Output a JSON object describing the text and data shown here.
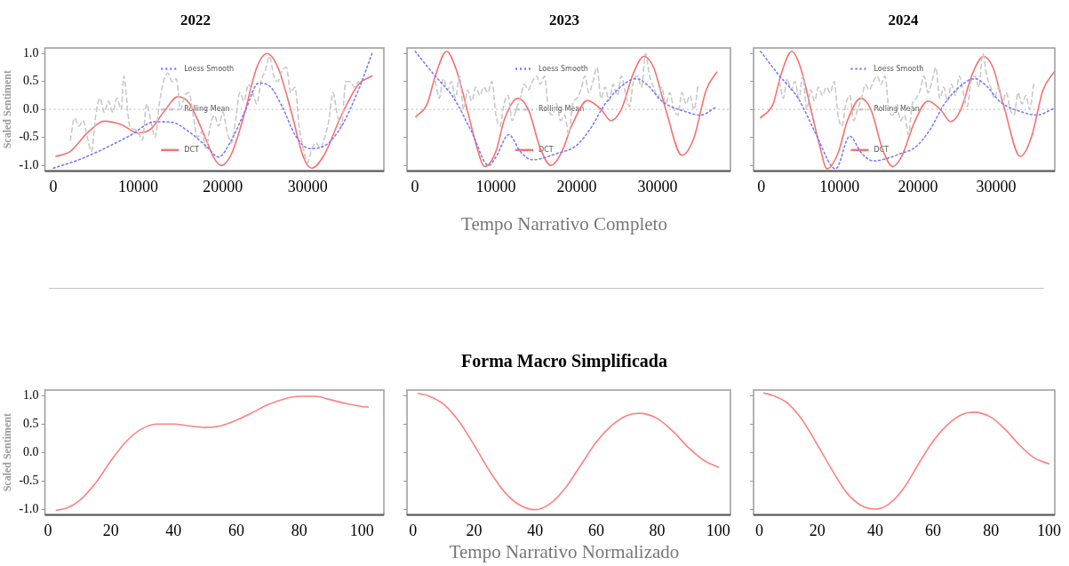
{
  "chart_data": [
    {
      "type": "line",
      "title": "2022",
      "ylabel": "Scaled Sentiment",
      "xlim": [
        -1000,
        39000
      ],
      "ylim": [
        -1.1,
        1.1
      ],
      "xticks": [
        0,
        10000,
        20000,
        30000
      ],
      "yticks": [
        {
          "value": -1,
          "label": "-1.0"
        },
        {
          "value": -0.5,
          "label": "-0.5"
        },
        {
          "value": 0,
          "label": "0.0"
        },
        {
          "value": 0.5,
          "label": "0.5"
        },
        {
          "value": 1,
          "label": "1.0"
        }
      ],
      "legend": "center",
      "ref_lines": [
        {
          "axis": "y",
          "value": 0,
          "color": "#c8c8c8",
          "line_style": "dotted"
        }
      ],
      "series": [
        {
          "name": "Loess Smooth",
          "color": "#7b7bff",
          "line_style": "dotted",
          "x": [
            0,
            3000,
            6000,
            9000,
            12000,
            14000,
            16000,
            18000,
            19500,
            21000,
            22700,
            24200,
            25500,
            27000,
            28500,
            30200,
            32000,
            34000,
            36000,
            37600
          ],
          "values": [
            -1.05,
            -0.9,
            -0.7,
            -0.47,
            -0.22,
            -0.23,
            -0.4,
            -0.65,
            -0.85,
            -0.55,
            0.0,
            0.47,
            0.42,
            0.05,
            -0.45,
            -0.7,
            -0.65,
            -0.3,
            0.35,
            1.0
          ]
        },
        {
          "name": "Rolling Mean",
          "color": "#c8c8c8",
          "line_style": "dashed",
          "x": [
            2000,
            2500,
            3000,
            3500,
            4000,
            4500,
            5000,
            5500,
            6000,
            6500,
            7000,
            7500,
            8000,
            8300,
            9000,
            9500,
            10000,
            10500,
            11000,
            11500,
            12000,
            12500,
            13000,
            13500,
            14000,
            14500,
            15000,
            15500,
            16000,
            16500,
            17000,
            17500,
            18000,
            18500,
            19000,
            19500,
            20000,
            20500,
            21000,
            21500,
            22000,
            22500,
            23000,
            23500,
            24000,
            24500,
            25000,
            25500,
            26000,
            26500,
            27000,
            27500,
            28000,
            28500,
            29000,
            29500,
            30000,
            30500,
            31000,
            31500,
            32000,
            32500,
            33000,
            33500,
            34000,
            34500,
            35000,
            35500,
            36000
          ],
          "values": [
            -0.55,
            -0.15,
            -0.3,
            -0.2,
            -0.5,
            -0.75,
            -0.1,
            0.2,
            -0.05,
            0.15,
            -0.05,
            0.2,
            0.0,
            0.6,
            -0.3,
            -0.35,
            -0.4,
            -0.55,
            0.1,
            -0.2,
            -0.5,
            0.1,
            0.5,
            0.65,
            0.5,
            0.55,
            0.0,
            0.25,
            0.3,
            -0.1,
            -0.5,
            -0.4,
            -0.7,
            -0.3,
            -0.1,
            -0.3,
            -0.05,
            -0.4,
            -0.6,
            -0.2,
            0.3,
            0.15,
            0.45,
            0.3,
            0.1,
            0.5,
            0.7,
            0.95,
            0.6,
            0.5,
            0.7,
            0.75,
            0.3,
            0.4,
            -0.3,
            -0.7,
            -0.95,
            -0.7,
            -0.6,
            -0.7,
            -0.5,
            -0.2,
            0.3,
            -0.1,
            -0.3,
            0.5,
            0.5,
            0.4,
            0.5
          ]
        },
        {
          "name": "DCT",
          "color": "#f77070",
          "line_style": "solid",
          "x": [
            300,
            2000,
            4000,
            6000,
            8000,
            10000,
            11500,
            13000,
            14700,
            16000,
            17500,
            19000,
            19800,
            21000,
            22500,
            24000,
            25200,
            26500,
            28000,
            29500,
            30500,
            32000,
            34000,
            36000,
            37600
          ],
          "values": [
            -0.84,
            -0.75,
            -0.42,
            -0.21,
            -0.27,
            -0.42,
            -0.35,
            -0.05,
            0.23,
            0.12,
            -0.35,
            -0.88,
            -1.0,
            -0.8,
            -0.1,
            0.75,
            1.0,
            0.75,
            0.0,
            -0.85,
            -1.05,
            -0.8,
            -0.1,
            0.45,
            0.6
          ]
        }
      ]
    },
    {
      "type": "line",
      "title": "2023",
      "xlabel": "Tempo Narrativo Completo",
      "tick_labels": "x",
      "xlim": [
        -1000,
        39000
      ],
      "ylim": [
        -1.1,
        1.1
      ],
      "xticks": [
        0,
        10000,
        20000,
        30000
      ],
      "yticks": [
        {
          "value": -1,
          "label": null
        },
        {
          "value": -0.5,
          "label": null
        },
        {
          "value": 0,
          "label": null
        },
        {
          "value": 0.5,
          "label": null
        },
        {
          "value": 1,
          "label": null
        }
      ],
      "legend": "center",
      "ref_lines": [
        {
          "axis": "y",
          "value": 0,
          "color": "#c8c8c8",
          "line_style": "dotted"
        }
      ],
      "series": [
        {
          "name": "Loess Smooth",
          "color": "#7b7bff",
          "line_style": "dotted",
          "x": [
            0,
            2300,
            4800,
            7000,
            9100,
            10000,
            11600,
            13000,
            14500,
            17700,
            19900,
            21700,
            23500,
            26300,
            27400,
            28800,
            30600,
            33500,
            35300,
            37300
          ],
          "values": [
            1.04,
            0.63,
            0.2,
            -0.4,
            -1.0,
            -0.85,
            -0.45,
            -0.75,
            -0.9,
            -0.78,
            -0.65,
            -0.34,
            0.1,
            0.5,
            0.55,
            0.43,
            0.14,
            -0.04,
            -0.1,
            0.05
          ]
        },
        {
          "name": "Rolling Mean",
          "color": "#c8c8c8",
          "line_style": "dashed",
          "x": [
            2500,
            3000,
            3500,
            4000,
            4500,
            5000,
            5500,
            6000,
            6500,
            7000,
            7500,
            8000,
            8500,
            9000,
            9500,
            10000,
            10500,
            11000,
            11500,
            12000,
            12500,
            13000,
            13500,
            14000,
            14500,
            15000,
            15500,
            16000,
            16500,
            17000,
            17500,
            18000,
            18500,
            19000,
            19500,
            20000,
            20500,
            21000,
            21500,
            22000,
            22500,
            23000,
            23500,
            24000,
            24500,
            25000,
            25500,
            26000,
            26500,
            27000,
            27500,
            28000,
            28500,
            29000,
            29500,
            30000,
            30500,
            31000,
            31500,
            32000,
            32500,
            33000,
            33500,
            34000,
            34500,
            35000
          ],
          "values": [
            0.5,
            0.2,
            0.55,
            0.35,
            0.5,
            0.2,
            0.6,
            0.0,
            0.35,
            0.15,
            0.4,
            0.25,
            0.4,
            0.3,
            0.5,
            -0.1,
            -0.3,
            0.1,
            0.25,
            -0.2,
            0.0,
            0.2,
            0.45,
            0.35,
            0.5,
            0.6,
            0.45,
            0.6,
            0.0,
            -0.1,
            0.1,
            -0.2,
            -0.1,
            -0.45,
            0.1,
            0.2,
            0.35,
            0.6,
            0.3,
            0.5,
            0.75,
            0.2,
            0.4,
            0.15,
            0.45,
            0.25,
            0.6,
            0.3,
            0.05,
            0.5,
            0.6,
            0.4,
            1.0,
            0.6,
            0.4,
            0.2,
            0.4,
            0.1,
            0.3,
            0.0,
            -0.1,
            0.3,
            0.1,
            0.25,
            0.0,
            0.45
          ]
        },
        {
          "name": "DCT",
          "color": "#f77070",
          "line_style": "solid",
          "x": [
            100,
            1500,
            2500,
            3900,
            5000,
            6600,
            7500,
            8600,
            10000,
            11000,
            12700,
            14000,
            15500,
            16800,
            18000,
            19500,
            21300,
            23000,
            24200,
            25500,
            27000,
            28300,
            29500,
            31000,
            33000,
            34500,
            36000,
            37300
          ],
          "values": [
            -0.13,
            0.1,
            0.6,
            1.04,
            0.75,
            -0.09,
            -0.6,
            -1.02,
            -0.75,
            -0.2,
            0.2,
            0.0,
            -0.7,
            -1.0,
            -0.8,
            -0.25,
            0.16,
            0.0,
            -0.2,
            0.0,
            0.65,
            0.95,
            0.75,
            0.0,
            -0.82,
            -0.5,
            0.35,
            0.67
          ]
        }
      ]
    },
    {
      "type": "line",
      "title": "2024",
      "tick_labels": "x",
      "xlim": [
        -1000,
        37500
      ],
      "ylim": [
        -1.1,
        1.1
      ],
      "xticks": [
        0,
        10000,
        20000,
        30000
      ],
      "yticks": [
        {
          "value": -1,
          "label": null
        },
        {
          "value": -0.5,
          "label": null
        },
        {
          "value": 0,
          "label": null
        },
        {
          "value": 0.5,
          "label": null
        },
        {
          "value": 1,
          "label": null
        }
      ],
      "legend": "center",
      "ref_lines": [
        {
          "axis": "y",
          "value": 0,
          "color": "#c8c8c8",
          "line_style": "dotted"
        }
      ],
      "series": [
        {
          "name": "Loess Smooth",
          "color": "#7b7bff",
          "line_style": "dotted",
          "x": [
            -100,
            2200,
            4700,
            6900,
            9000,
            9500,
            11300,
            12800,
            14300,
            17600,
            19800,
            21600,
            23400,
            26200,
            27300,
            28700,
            30500,
            33400,
            35200,
            37400
          ],
          "values": [
            1.04,
            0.62,
            0.2,
            -0.42,
            -1.02,
            -1.06,
            -0.48,
            -0.78,
            -0.92,
            -0.8,
            -0.66,
            -0.35,
            0.1,
            0.5,
            0.55,
            0.43,
            0.14,
            -0.05,
            -0.1,
            0.02
          ]
        },
        {
          "name": "Rolling Mean",
          "color": "#c8c8c8",
          "line_style": "dashed",
          "x": [
            2300,
            2800,
            3300,
            3800,
            4300,
            4800,
            5300,
            5800,
            6300,
            6800,
            7300,
            7800,
            8300,
            8800,
            9300,
            9800,
            10300,
            10800,
            11300,
            11800,
            12300,
            12800,
            13300,
            13800,
            14300,
            14800,
            15300,
            15800,
            16300,
            16800,
            17300,
            17800,
            18300,
            18800,
            19300,
            19800,
            20300,
            20800,
            21300,
            21800,
            22300,
            22800,
            23300,
            23800,
            24300,
            24800,
            25300,
            25800,
            26300,
            26800,
            27300,
            27800,
            28300,
            28800,
            29300,
            29800,
            30300,
            30800,
            31300,
            31800,
            32300,
            32800,
            33300,
            33800,
            34300,
            34800
          ],
          "values": [
            0.5,
            0.2,
            0.55,
            0.35,
            0.5,
            0.2,
            0.6,
            0.0,
            0.35,
            0.15,
            0.4,
            0.25,
            0.4,
            0.3,
            0.5,
            -0.1,
            -0.3,
            0.1,
            0.25,
            -0.2,
            0.0,
            0.2,
            0.45,
            0.35,
            0.5,
            0.6,
            0.45,
            0.6,
            0.0,
            -0.1,
            0.1,
            -0.2,
            -0.1,
            -0.45,
            0.1,
            0.2,
            0.35,
            0.6,
            0.3,
            0.5,
            0.75,
            0.2,
            0.4,
            0.15,
            0.45,
            0.25,
            0.6,
            0.3,
            0.05,
            0.5,
            0.6,
            0.4,
            1.0,
            0.6,
            0.4,
            0.2,
            0.4,
            0.1,
            0.3,
            0.0,
            -0.1,
            0.3,
            0.1,
            0.25,
            0.0,
            0.45
          ]
        },
        {
          "name": "DCT",
          "color": "#f77070",
          "line_style": "solid",
          "x": [
            -100,
            1500,
            2500,
            3900,
            5000,
            6500,
            7400,
            8400,
            9800,
            11000,
            12700,
            14000,
            15500,
            16800,
            18000,
            19500,
            21300,
            23000,
            24200,
            25500,
            27000,
            28400,
            29600,
            31000,
            33100,
            34500,
            36000,
            37400
          ],
          "values": [
            -0.15,
            0.1,
            0.62,
            1.04,
            0.75,
            -0.1,
            -0.62,
            -1.06,
            -0.78,
            -0.2,
            0.2,
            0.0,
            -0.72,
            -1.02,
            -0.82,
            -0.25,
            0.15,
            -0.02,
            -0.22,
            0.0,
            0.65,
            0.95,
            0.75,
            0.05,
            -0.84,
            -0.5,
            0.35,
            0.67
          ]
        }
      ]
    },
    {
      "type": "line",
      "ylabel": "Scaled Sentiment",
      "xlim": [
        -1,
        107
      ],
      "ylim": [
        -1.1,
        1.1
      ],
      "xticks": [
        0,
        20,
        40,
        60,
        80,
        100
      ],
      "yticks": [
        {
          "value": -1,
          "label": "-1.0"
        },
        {
          "value": -0.5,
          "label": "-0.5"
        },
        {
          "value": 0,
          "label": "0.0"
        },
        {
          "value": 0.5,
          "label": "0.5"
        },
        {
          "value": 1,
          "label": "1.0"
        }
      ],
      "series": [
        {
          "color": "#ff8080",
          "x": [
            2.6,
            6,
            10,
            15,
            20,
            25,
            30,
            35,
            40,
            45,
            50,
            55,
            60,
            65,
            70,
            75,
            80,
            85,
            90,
            95,
            100,
            102
          ],
          "values": [
            -1.02,
            -0.98,
            -0.85,
            -0.55,
            -0.15,
            0.2,
            0.42,
            0.5,
            0.5,
            0.47,
            0.44,
            0.47,
            0.57,
            0.7,
            0.84,
            0.94,
            0.99,
            0.99,
            0.93,
            0.86,
            0.81,
            0.8
          ]
        }
      ]
    },
    {
      "type": "line",
      "title": "Forma Macro Simplificada",
      "xlabel": "Tempo Narrativo Normalizado",
      "tick_labels": "x",
      "xlim": [
        -2,
        104
      ],
      "ylim": [
        -1.1,
        1.1
      ],
      "xticks": [
        0,
        20,
        40,
        60,
        80,
        100
      ],
      "yticks": [
        {
          "value": -1,
          "label": null
        },
        {
          "value": -0.5,
          "label": null
        },
        {
          "value": 0,
          "label": null
        },
        {
          "value": 0.5,
          "label": null
        },
        {
          "value": 1,
          "label": null
        }
      ],
      "series": [
        {
          "color": "#ff8080",
          "x": [
            1.7,
            5,
            10,
            15,
            20,
            25,
            30,
            35,
            40,
            45,
            50,
            55,
            60,
            65,
            70,
            74,
            80,
            85,
            90,
            95,
            100
          ],
          "values": [
            1.04,
            1.0,
            0.85,
            0.55,
            0.13,
            -0.32,
            -0.7,
            -0.93,
            -1.01,
            -0.9,
            -0.62,
            -0.22,
            0.18,
            0.47,
            0.65,
            0.69,
            0.6,
            0.38,
            0.1,
            -0.13,
            -0.26
          ]
        }
      ]
    },
    {
      "type": "line",
      "tick_labels": "x",
      "xlim": [
        -2,
        102
      ],
      "ylim": [
        -1.1,
        1.1
      ],
      "xticks": [
        0,
        20,
        40,
        60,
        80,
        100
      ],
      "yticks": [
        {
          "value": -1,
          "label": null
        },
        {
          "value": -0.5,
          "label": null
        },
        {
          "value": 0,
          "label": null
        },
        {
          "value": 0.5,
          "label": null
        },
        {
          "value": 1,
          "label": null
        }
      ],
      "series": [
        {
          "color": "#ff8080",
          "x": [
            1.5,
            5,
            10,
            15,
            20,
            25,
            30,
            35,
            40,
            45,
            50,
            55,
            60,
            65,
            70,
            74,
            80,
            85,
            90,
            95,
            100
          ],
          "values": [
            1.05,
            1.0,
            0.86,
            0.56,
            0.14,
            -0.3,
            -0.7,
            -0.93,
            -1.0,
            -0.9,
            -0.62,
            -0.2,
            0.2,
            0.49,
            0.67,
            0.71,
            0.62,
            0.4,
            0.12,
            -0.1,
            -0.2
          ]
        }
      ]
    }
  ]
}
